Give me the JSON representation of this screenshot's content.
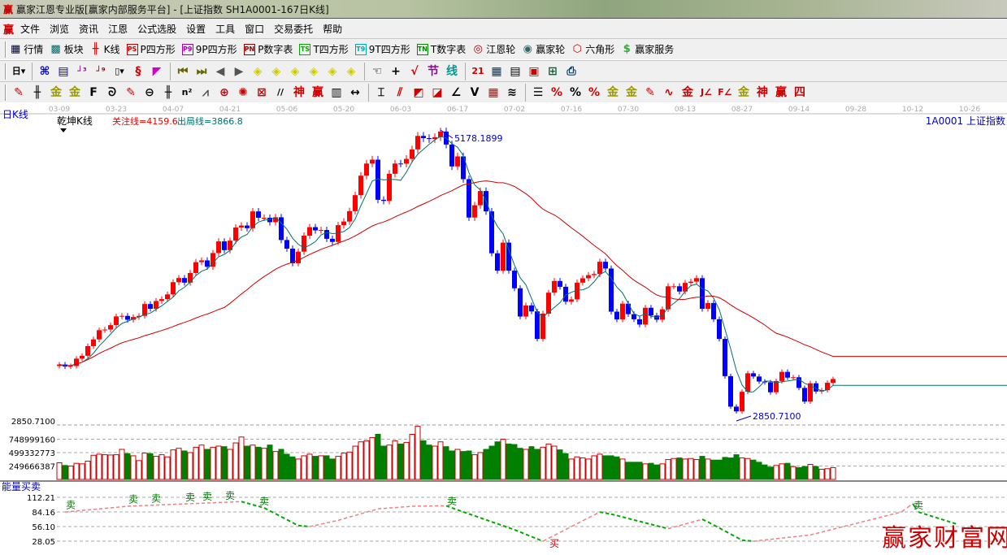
{
  "window": {
    "title": "赢家江恩专业版[赢家内部服务平台] - [上证指数  SH1A0001-167日K线]",
    "logo": "赢"
  },
  "menu": [
    "文件",
    "浏览",
    "资讯",
    "江恩",
    "公式选股",
    "设置",
    "工具",
    "窗口",
    "交易委托",
    "帮助"
  ],
  "toolbar1": [
    {
      "name": "quotes",
      "label": "行情",
      "icon": "▦",
      "color": "#003"
    },
    {
      "name": "sector",
      "label": "板块",
      "icon": "▩",
      "color": "#066"
    },
    {
      "name": "kline",
      "label": "K线",
      "icon": "╫",
      "color": "#c00"
    },
    {
      "name": "p-square",
      "label": "P四方形",
      "icon": "PS",
      "color": "#c00"
    },
    {
      "name": "9p-square",
      "label": "9P四方形",
      "icon": "P9",
      "color": "#a0a"
    },
    {
      "name": "p-number-table",
      "label": "P数字表",
      "icon": "PN",
      "color": "#900"
    },
    {
      "name": "t-square",
      "label": "T四方形",
      "icon": "TS",
      "color": "#0a0"
    },
    {
      "name": "9t-square",
      "label": "9T四方形",
      "icon": "T9",
      "color": "#0aa"
    },
    {
      "name": "t-number-table",
      "label": "T数字表",
      "icon": "TN",
      "color": "#080"
    },
    {
      "name": "gann-wheel",
      "label": "江恩轮",
      "icon": "◎",
      "color": "#900"
    },
    {
      "name": "winner-wheel",
      "label": "赢家轮",
      "icon": "◉",
      "color": "#366"
    },
    {
      "name": "hexagon",
      "label": "六角形",
      "icon": "⬡",
      "color": "#c00"
    },
    {
      "name": "winner-service",
      "label": "赢家服务",
      "icon": "$",
      "color": "#3a3"
    }
  ],
  "toolbar2": [
    {
      "name": "period-day",
      "glyph": "日▾",
      "color": "#000"
    },
    {
      "name": "sep"
    },
    {
      "name": "draw-select",
      "glyph": "⌘",
      "color": "#00c"
    },
    {
      "name": "notes",
      "glyph": "▤",
      "color": "#00c"
    },
    {
      "name": "indicator-3",
      "glyph": "┘³",
      "color": "#909"
    },
    {
      "name": "indicator-9",
      "glyph": "┘⁹",
      "color": "#900"
    },
    {
      "name": "candle-type",
      "glyph": "▯▾",
      "color": "#000"
    },
    {
      "name": "color-set",
      "glyph": "§",
      "color": "#c00"
    },
    {
      "name": "flag",
      "glyph": "◤",
      "color": "#c0c"
    },
    {
      "name": "sep"
    },
    {
      "name": "first",
      "glyph": "⏮",
      "color": "#660"
    },
    {
      "name": "last",
      "glyph": "⏭",
      "color": "#660"
    },
    {
      "name": "prev",
      "glyph": "◀",
      "color": "#555"
    },
    {
      "name": "next",
      "glyph": "▶",
      "color": "#555"
    },
    {
      "name": "zoom-left",
      "glyph": "◈",
      "color": "#cc0"
    },
    {
      "name": "zoom-right",
      "glyph": "◈",
      "color": "#cc0"
    },
    {
      "name": "zoom-h",
      "glyph": "◈",
      "color": "#cc0"
    },
    {
      "name": "zoom-all",
      "glyph": "◈",
      "color": "#cc0"
    },
    {
      "name": "zoom-in",
      "glyph": "◈",
      "color": "#cc0"
    },
    {
      "name": "zoom-out",
      "glyph": "◈",
      "color": "#cc0"
    },
    {
      "name": "sep"
    },
    {
      "name": "hand",
      "glyph": "☜",
      "color": "#000"
    },
    {
      "name": "crosshair",
      "glyph": "+",
      "color": "#000"
    },
    {
      "name": "trend",
      "glyph": "√",
      "color": "#c00"
    },
    {
      "name": "section",
      "glyph": "节",
      "color": "#909"
    },
    {
      "name": "line-mode",
      "glyph": "线",
      "color": "#099"
    },
    {
      "name": "sep"
    },
    {
      "name": "calendar",
      "glyph": "21",
      "color": "#c00"
    },
    {
      "name": "calculator",
      "glyph": "▦",
      "color": "#036"
    },
    {
      "name": "report",
      "glyph": "▤",
      "color": "#000"
    },
    {
      "name": "save",
      "glyph": "▣",
      "color": "#c00"
    },
    {
      "name": "network",
      "glyph": "⊞",
      "color": "#063"
    },
    {
      "name": "printer",
      "glyph": "⎙",
      "color": "#036"
    }
  ],
  "toolbar3": [
    {
      "name": "pen",
      "glyph": "✎",
      "color": "#c00"
    },
    {
      "name": "parallel",
      "glyph": "╫",
      "color": "#000"
    },
    {
      "name": "gold-1",
      "glyph": "金",
      "color": "#990"
    },
    {
      "name": "gold-2",
      "glyph": "金",
      "color": "#990"
    },
    {
      "name": "fib",
      "glyph": "F",
      "color": "#000"
    },
    {
      "name": "spiral",
      "glyph": "ᘐ",
      "color": "#000"
    },
    {
      "name": "marker",
      "glyph": "✎",
      "color": "#c00"
    },
    {
      "name": "circle",
      "glyph": "⊖",
      "color": "#000"
    },
    {
      "name": "grid",
      "glyph": "╫",
      "color": "#000"
    },
    {
      "name": "n2",
      "glyph": "n²",
      "color": "#000"
    },
    {
      "name": "fan",
      "glyph": "⩘",
      "color": "#555"
    },
    {
      "name": "target",
      "glyph": "⊕",
      "color": "#c00"
    },
    {
      "name": "radial",
      "glyph": "✺",
      "color": "#c00"
    },
    {
      "name": "box",
      "glyph": "⊠",
      "color": "#c00"
    },
    {
      "name": "angle",
      "glyph": "//",
      "color": "#000"
    },
    {
      "name": "shen",
      "glyph": "神",
      "color": "#c00"
    },
    {
      "name": "ying",
      "glyph": "赢",
      "color": "#c00"
    },
    {
      "name": "ruler",
      "glyph": "▥",
      "color": "#000"
    },
    {
      "name": "width",
      "glyph": "↔",
      "color": "#000"
    },
    {
      "name": "sep"
    },
    {
      "name": "frame",
      "glyph": "⌶",
      "color": "#000"
    },
    {
      "name": "rays",
      "glyph": "⫽",
      "color": "#c00"
    },
    {
      "name": "gann-box",
      "glyph": "◩",
      "color": "#c00"
    },
    {
      "name": "gann-box2",
      "glyph": "◪",
      "color": "#c00"
    },
    {
      "name": "gann-fan",
      "glyph": "∠",
      "color": "#000"
    },
    {
      "name": "v-line",
      "glyph": "V",
      "color": "#000"
    },
    {
      "name": "grid2",
      "glyph": "▦",
      "color": "#c00"
    },
    {
      "name": "multi-line",
      "glyph": "≋",
      "color": "#000"
    },
    {
      "name": "sep"
    },
    {
      "name": "levels",
      "glyph": "☰",
      "color": "#000"
    },
    {
      "name": "percent-line",
      "glyph": "%",
      "color": "#c00"
    },
    {
      "name": "percent",
      "glyph": "%",
      "color": "#000"
    },
    {
      "name": "percent-levels",
      "glyph": "%",
      "color": "#c00"
    },
    {
      "name": "gold-circle",
      "glyph": "金",
      "color": "#990"
    },
    {
      "name": "gold-levels",
      "glyph": "金",
      "color": "#990"
    },
    {
      "name": "pencil-levels",
      "glyph": "✎",
      "color": "#c00"
    },
    {
      "name": "wave",
      "glyph": "∿",
      "color": "#c00"
    },
    {
      "name": "gold-red",
      "glyph": "金",
      "color": "#c00"
    },
    {
      "name": "j-angle",
      "glyph": "J∠",
      "color": "#c00"
    },
    {
      "name": "f-angle",
      "glyph": "F∠",
      "color": "#c00"
    },
    {
      "name": "gold-angle",
      "glyph": "金",
      "color": "#990"
    },
    {
      "name": "shen-angle",
      "glyph": "神",
      "color": "#c00"
    },
    {
      "name": "ying-angle",
      "glyph": "赢",
      "color": "#c00"
    },
    {
      "name": "si-angle",
      "glyph": "四",
      "color": "#c00"
    }
  ],
  "chart_header": {
    "period": "日K线",
    "indicator": "乾坤K线",
    "focus_line": "关注线=4159.6",
    "exit_line": "出局线=3866.8",
    "security": "1A0001  上证指数"
  },
  "colors": {
    "up": "#ff0000",
    "down": "#0000ff",
    "ma_short": "#007070",
    "ma_long": "#cc0000",
    "vol_down": "#007f00",
    "vol_up": "#cc0000",
    "watermark": "#cc0000"
  },
  "chart_data": {
    "type": "candlestick",
    "date_ticks": [
      "03-09",
      "03-23",
      "04-07",
      "04-21",
      "05-06",
      "05-20",
      "06-03",
      "06-17",
      "07-02",
      "07-16",
      "07-30",
      "08-13",
      "08-27",
      "09-14",
      "09-28",
      "10-12",
      "10-26"
    ],
    "close": [
      3302,
      3286,
      3290,
      3349,
      3372,
      3449,
      3503,
      3577,
      3582,
      3617,
      3687,
      3691,
      3660,
      3682,
      3691,
      3786,
      3748,
      3810,
      3825,
      3863,
      3961,
      3994,
      3957,
      4034,
      4121,
      4135,
      4084,
      4194,
      4287,
      4217,
      4293,
      4398,
      4414,
      4393,
      4527,
      4476,
      4476,
      4441,
      4480,
      4298,
      4229,
      4112,
      4205,
      4333,
      4401,
      4375,
      4378,
      4308,
      4283,
      4417,
      4446,
      4529,
      4657,
      4813,
      4910,
      4941,
      4620,
      4611,
      4828,
      4910,
      4909,
      4947,
      5023,
      5131,
      5113,
      5106,
      5121,
      5166,
      5062,
      4887,
      4967,
      4785,
      4478,
      4576,
      4690,
      4527,
      4192,
      4053,
      4277,
      4053,
      3912,
      3686,
      3775,
      3727,
      3507,
      3709,
      3877,
      3970,
      3924,
      3805,
      3823,
      3957,
      3992,
      4017,
      4026,
      4124,
      4070,
      3725,
      3663,
      3789,
      3705,
      3664,
      3622,
      3756,
      3694,
      3661,
      3744,
      3928,
      3928,
      3886,
      3955,
      3965,
      3993,
      3748,
      3794,
      3664,
      3507,
      3209,
      2965,
      2927,
      3084,
      3232,
      3206,
      3166,
      3160,
      3080,
      3170,
      3243,
      3197,
      3200,
      3115,
      3005,
      3152,
      3086,
      3097,
      3156,
      3186
    ],
    "volume": [
      310000000.0,
      260000000.0,
      250000000.0,
      300000000.0,
      290000000.0,
      340000000.0,
      450000000.0,
      470000000.0,
      460000000.0,
      455000000.0,
      460000000.0,
      560000000.0,
      480000000.0,
      440000000.0,
      350000000.0,
      490000000.0,
      480000000.0,
      430000000.0,
      460000000.0,
      420000000.0,
      550000000.0,
      580000000.0,
      530000000.0,
      500000000.0,
      600000000.0,
      640000000.0,
      560000000.0,
      600000000.0,
      620000000.0,
      610000000.0,
      560000000.0,
      680000000.0,
      790000000.0,
      620000000.0,
      640000000.0,
      600000000.0,
      580000000.0,
      640000000.0,
      520000000.0,
      560000000.0,
      470000000.0,
      420000000.0,
      380000000.0,
      440000000.0,
      470000000.0,
      430000000.0,
      440000000.0,
      440000000.0,
      380000000.0,
      430000000.0,
      490000000.0,
      510000000.0,
      620000000.0,
      700000000.0,
      720000000.0,
      780000000.0,
      840000000.0,
      620000000.0,
      640000000.0,
      720000000.0,
      660000000.0,
      690000000.0,
      840000000.0,
      990000000.0,
      720000000.0,
      640000000.0,
      620000000.0,
      700000000.0,
      610000000.0,
      530000000.0,
      560000000.0,
      520000000.0,
      530000000.0,
      460000000.0,
      500000000.0,
      560000000.0,
      620000000.0,
      700000000.0,
      750000000.0,
      660000000.0,
      650000000.0,
      580000000.0,
      560000000.0,
      610000000.0,
      560000000.0,
      600000000.0,
      660000000.0,
      620000000.0,
      550000000.0,
      480000000.0,
      380000000.0,
      420000000.0,
      400000000.0,
      380000000.0,
      440000000.0,
      470000000.0,
      440000000.0,
      440000000.0,
      420000000.0,
      380000000.0,
      320000000.0,
      320000000.0,
      320000000.0,
      290000000.0,
      300000000.0,
      270000000.0,
      290000000.0,
      370000000.0,
      390000000.0,
      400000000.0,
      380000000.0,
      390000000.0,
      370000000.0,
      430000000.0,
      380000000.0,
      360000000.0,
      360000000.0,
      410000000.0,
      400000000.0,
      460000000.0,
      400000000.0,
      390000000.0,
      360000000.0,
      320000000.0,
      270000000.0,
      230000000.0,
      260000000.0,
      290000000.0,
      300000000.0,
      240000000.0,
      220000000.0,
      240000000.0,
      280000000.0,
      240000000.0,
      190000000.0,
      200000000.0,
      220000000.0
    ],
    "high_label": "5178.1899",
    "low_label": "2850.7100",
    "price_axis_label": "2850.7100",
    "volume_ticks": [
      "748999160",
      "499332773",
      "249666387"
    ],
    "volume_tick_values": [
      748999160,
      499332773,
      249666387
    ],
    "energy": {
      "title": "能量买卖",
      "ticks": [
        "112.21",
        "84.16",
        "56.10",
        "28.05"
      ],
      "tick_values": [
        112.21,
        84.16,
        56.1,
        28.05
      ],
      "points": [
        [
          1,
          84
        ],
        [
          12,
          95
        ],
        [
          32,
          104
        ],
        [
          36,
          92
        ],
        [
          42,
          58
        ],
        [
          44,
          56
        ],
        [
          49,
          68
        ],
        [
          56,
          90
        ],
        [
          62,
          95
        ],
        [
          68,
          96
        ],
        [
          70,
          88
        ],
        [
          80,
          50
        ],
        [
          85,
          28
        ],
        [
          95,
          84
        ],
        [
          97,
          80
        ],
        [
          107,
          52
        ],
        [
          113,
          70
        ],
        [
          114,
          65
        ],
        [
          120,
          30
        ],
        [
          122,
          28
        ],
        [
          132,
          40
        ],
        [
          148,
          84
        ],
        [
          150,
          100
        ],
        [
          151,
          84
        ],
        [
          158,
          60
        ]
      ],
      "sell_label": "卖",
      "buy_label": "买",
      "sell_at": [
        2,
        13,
        17,
        23,
        26,
        30,
        36,
        69,
        151
      ],
      "buy_at": [
        87
      ]
    }
  },
  "watermark": "赢家财富网"
}
